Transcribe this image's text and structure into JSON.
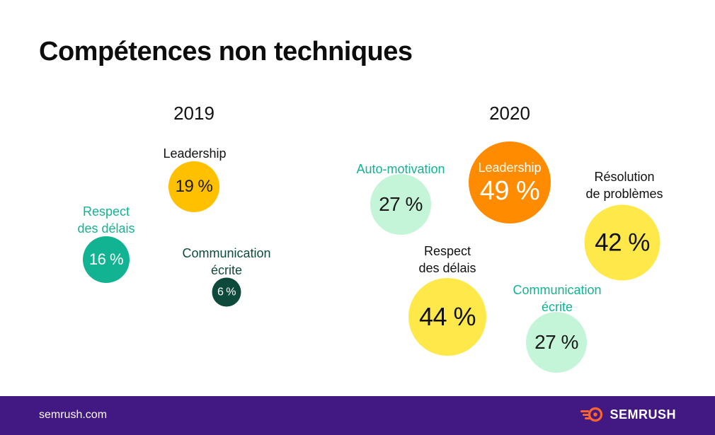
{
  "title": "Compétences non techniques",
  "chart_data": [
    {
      "type": "bubble",
      "title": "2019",
      "points": [
        {
          "label": "Leadership",
          "value": 19,
          "display": "19 %",
          "color": "#FFC000",
          "text_color": "#1a1a1a",
          "label_color": "#111111"
        },
        {
          "label": "Respect\ndes délais",
          "value": 16,
          "display": "16 %",
          "color": "#12B392",
          "text_color": "#ffffff",
          "label_color": "#12B392"
        },
        {
          "label": "Communication\nécrite",
          "value": 6,
          "display": "6 %",
          "color": "#0E4A3B",
          "text_color": "#ffffff",
          "label_color": "#0E4A3B"
        }
      ]
    },
    {
      "type": "bubble",
      "title": "2020",
      "points": [
        {
          "label": "Auto-motivation",
          "value": 27,
          "display": "27 %",
          "color": "#C4F5D8",
          "text_color": "#1a1a1a",
          "label_color": "#12B392"
        },
        {
          "label": "Leadership",
          "value": 49,
          "display": "49 %",
          "color": "#FF8C00",
          "text_color": "#ffffff",
          "label_color": "#ffffff",
          "label_inside": true
        },
        {
          "label": "Résolution\nde problèmes",
          "value": 42,
          "display": "42 %",
          "color": "#FFE94A",
          "text_color": "#111111",
          "label_color": "#111111"
        },
        {
          "label": "Respect\ndes délais",
          "value": 44,
          "display": "44 %",
          "color": "#FFE94A",
          "text_color": "#111111",
          "label_color": "#111111"
        },
        {
          "label": "Communication\nécrite",
          "value": 27,
          "display": "27 %",
          "color": "#C4F5D8",
          "text_color": "#1a1a1a",
          "label_color": "#12B392"
        }
      ]
    }
  ],
  "footer": {
    "site": "semrush.com",
    "brand": "SEMRUSH",
    "brand_icon": "semrush-flame-icon",
    "background": "#421983",
    "brand_accent": "#FF642D"
  }
}
